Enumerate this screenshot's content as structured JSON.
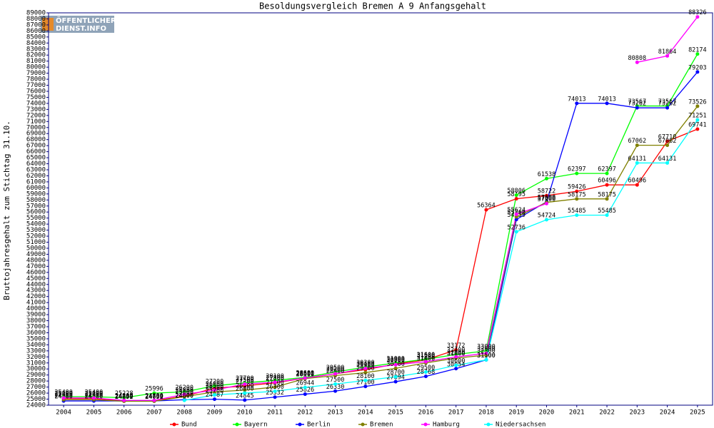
{
  "chart_data": {
    "type": "line",
    "title": "Besoldungsvergleich Bremen A 9 Anfangsgehalt",
    "y_label": "Bruttojahresgehalt zum Stichtag 31.10.",
    "logo": [
      "ÖFFENTLICHER",
      "DIENST.INFO"
    ],
    "categories": [
      "2004",
      "2005",
      "2006",
      "2007",
      "2008",
      "2009",
      "2010",
      "2011",
      "2012",
      "2013",
      "2014",
      "2015",
      "2016",
      "2017",
      "2018",
      "2019",
      "2020",
      "2021",
      "2022",
      "2023",
      "2024",
      "2025"
    ],
    "ylim": [
      24000,
      89000
    ],
    "yticks": [
      24000,
      25000,
      26000,
      27000,
      28000,
      29000,
      30000,
      31000,
      32000,
      33000,
      34000,
      35000,
      36000,
      37000,
      38000,
      39000,
      40000,
      41000,
      42000,
      43000,
      44000,
      45000,
      46000,
      47000,
      48000,
      49000,
      50000,
      51000,
      52000,
      53000,
      54000,
      55000,
      56000,
      57000,
      58000,
      59000,
      60000,
      61000,
      62000,
      63000,
      64000,
      65000,
      66000,
      67000,
      68000,
      69000,
      70000,
      71000,
      72000,
      73000,
      74000,
      75000,
      76000,
      77000,
      78000,
      79000,
      80000,
      81000,
      82000,
      83000,
      84000,
      85000,
      86000,
      87000,
      88000,
      89000
    ],
    "legend": "bottom",
    "series": [
      {
        "name": "Bund",
        "color": "#ff0000",
        "values": [
          25100,
          25100,
          24700,
          24700,
          25500,
          26800,
          27200,
          27700,
          28500,
          29200,
          29900,
          30800,
          31500,
          33172,
          56364,
          58195,
          58722,
          59426,
          60496,
          60496,
          67710,
          69741
        ]
      },
      {
        "name": "Bayern",
        "color": "#00ff00",
        "values": [
          25400,
          25400,
          25228,
          25996,
          26200,
          27200,
          27700,
          28100,
          28600,
          29500,
          30300,
          31000,
          31600,
          32400,
          33000,
          58806,
          61538,
          62397,
          62397,
          73567,
          73567,
          82174
        ]
      },
      {
        "name": "Berlin",
        "color": "#0000ff",
        "values": [
          24700,
          24700,
          24700,
          24700,
          24900,
          24987,
          24845,
          25332,
          25826,
          26330,
          27100,
          27894,
          28768,
          30054,
          31500,
          54759,
          57688,
          74013,
          74013,
          73262,
          73262,
          79203
        ]
      },
      {
        "name": "Bremen",
        "color": "#808000",
        "values": [
          24900,
          24900,
          24652,
          24652,
          25400,
          26200,
          26500,
          27000,
          28400,
          28900,
          29400,
          30100,
          31000,
          31800,
          32300,
          55200,
          57600,
          58175,
          58175,
          67062,
          67062,
          73526
        ]
      },
      {
        "name": "Hamburg",
        "color": "#ff00ff",
        "values": [
          25200,
          25200,
          24800,
          24800,
          25800,
          26500,
          27500,
          27800,
          28500,
          29200,
          30100,
          30700,
          31200,
          32000,
          32600,
          55624,
          57400,
          null,
          null,
          80808,
          81864,
          88326
        ]
      },
      {
        "name": "Niedersachsen",
        "color": "#00ffff",
        "values": [
          null,
          null,
          null,
          null,
          24800,
          25700,
          26000,
          26300,
          26944,
          27500,
          28100,
          28700,
          29500,
          30600,
          31500,
          52736,
          54724,
          55485,
          55485,
          64131,
          64131,
          71251
        ]
      }
    ]
  }
}
